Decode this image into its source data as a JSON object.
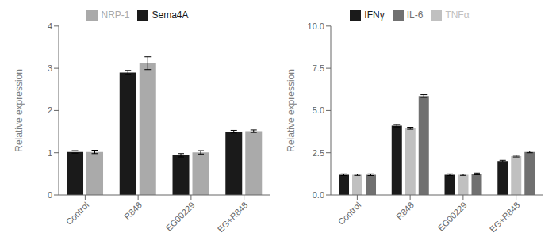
{
  "chart_data": [
    {
      "type": "bar",
      "ylabel": "Relative expression",
      "categories": [
        "Control",
        "R848",
        "EG00229",
        "EG+R848"
      ],
      "series": [
        {
          "name": "Sema4A",
          "color": "#1a1a1a",
          "values": [
            1.02,
            2.9,
            0.94,
            1.5
          ],
          "errors": [
            0.03,
            0.05,
            0.04,
            0.03
          ]
        },
        {
          "name": "NRP-1",
          "color": "#aaaaaa",
          "values": [
            1.02,
            3.12,
            1.01,
            1.51
          ],
          "errors": [
            0.04,
            0.15,
            0.04,
            0.03
          ]
        }
      ],
      "ylim": [
        0,
        4
      ],
      "yticks": [
        0,
        1,
        2,
        3,
        4
      ],
      "legend": "top",
      "grid": false
    },
    {
      "type": "bar",
      "ylabel": "Relative expression",
      "categories": [
        "Control",
        "R848",
        "EG00229",
        "EG+R848"
      ],
      "series": [
        {
          "name": "IFNγ",
          "color": "#1a1a1a",
          "values": [
            1.2,
            4.1,
            1.2,
            2.0
          ],
          "errors": [
            0.05,
            0.07,
            0.05,
            0.05
          ]
        },
        {
          "name": "TNFα",
          "color": "#c0c0c0",
          "values": [
            1.2,
            3.95,
            1.2,
            2.3
          ],
          "errors": [
            0.04,
            0.06,
            0.04,
            0.05
          ]
        },
        {
          "name": "IL-6",
          "color": "#707070",
          "values": [
            1.2,
            5.85,
            1.25,
            2.55
          ],
          "errors": [
            0.05,
            0.08,
            0.05,
            0.05
          ]
        }
      ],
      "ylim": [
        0,
        10.0
      ],
      "yticks": [
        {
          "value": 0,
          "label": "0.0"
        },
        2.5,
        {
          "value": 5,
          "label": "5.0"
        },
        7.5,
        {
          "value": 10,
          "label": "10.0"
        }
      ],
      "legend": "top",
      "grid": false
    }
  ]
}
